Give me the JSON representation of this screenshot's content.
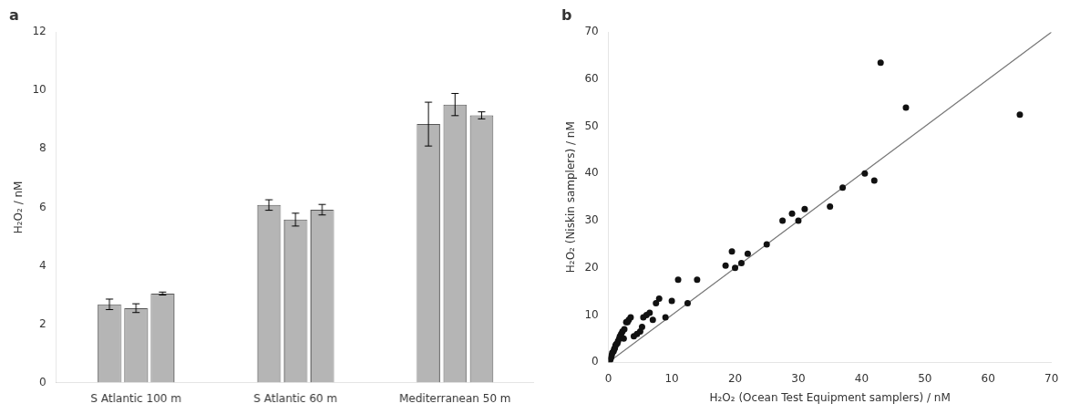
{
  "chart_data": [
    {
      "type": "bar",
      "title": "a",
      "categories": [
        "S Atlantic 100 m",
        "S Atlantic 60 m",
        "Mediterranean 50 m"
      ],
      "series": [
        {
          "values": [
            2.68,
            6.08,
            8.85
          ],
          "errors": [
            0.18,
            0.18,
            0.75
          ],
          "color": "#b5b5b5"
        },
        {
          "values": [
            2.55,
            5.58,
            9.52
          ],
          "errors": [
            0.15,
            0.22,
            0.38
          ],
          "color": "#b5b5b5"
        },
        {
          "values": [
            3.05,
            5.92,
            9.15
          ],
          "errors": [
            0.05,
            0.18,
            0.12
          ],
          "color": "#b5b5b5"
        }
      ],
      "ylabel": "H₂O₂ / nM",
      "ylim": [
        0,
        12
      ],
      "yticks": [
        0,
        2,
        4,
        6,
        8,
        10,
        12
      ],
      "grid": false
    },
    {
      "type": "scatter",
      "title": "b",
      "series": [
        {
          "type": "scatter",
          "marker": "circle",
          "color": "#111111",
          "x": [
            0.2,
            0.3,
            0.4,
            0.5,
            0.6,
            0.8,
            0.9,
            1.0,
            1.1,
            1.2,
            1.4,
            1.5,
            1.7,
            1.8,
            2.0,
            2.2,
            2.4,
            2.5,
            2.8,
            3.0,
            3.2,
            3.5,
            4.0,
            4.5,
            5.0,
            5.3,
            5.5,
            6.0,
            6.5,
            7.0,
            7.5,
            8.0,
            9.0,
            10.0,
            11.0,
            12.5,
            14.0,
            18.5,
            19.5,
            20.0,
            21.0,
            22.0,
            25.0,
            27.5,
            29.0,
            30.0,
            31.0,
            35.0,
            37.0,
            40.5,
            42.0,
            43.0,
            47.0,
            65.0
          ],
          "values": [
            0.3,
            0.6,
            1.0,
            1.5,
            2.0,
            2.3,
            2.8,
            3.0,
            3.5,
            3.8,
            4.0,
            4.5,
            5.0,
            5.5,
            6.0,
            6.5,
            5.0,
            7.0,
            8.5,
            8.5,
            9.0,
            9.5,
            5.5,
            6.0,
            6.5,
            7.5,
            9.5,
            10.0,
            10.5,
            9.0,
            12.5,
            13.5,
            9.5,
            13.0,
            17.5,
            12.5,
            17.5,
            20.5,
            23.5,
            20.0,
            21.0,
            23.0,
            25.0,
            30.0,
            31.5,
            30.0,
            32.5,
            33.0,
            37.0,
            40.0,
            38.5,
            63.5,
            54.0,
            52.5
          ]
        },
        {
          "type": "line",
          "color": "#777777",
          "x": [
            0,
            70
          ],
          "values": [
            0,
            70
          ]
        }
      ],
      "xlabel": "H₂O₂ (Ocean Test Equipment samplers) / nM",
      "ylabel": "H₂O₂ (Niskin samplers) / nM",
      "xlim": [
        0,
        70
      ],
      "ylim": [
        0,
        70
      ],
      "xticks": [
        0,
        10,
        20,
        30,
        40,
        50,
        60,
        70
      ],
      "yticks": [
        0,
        10,
        20,
        30,
        40,
        50,
        60,
        70
      ],
      "grid": false
    }
  ]
}
